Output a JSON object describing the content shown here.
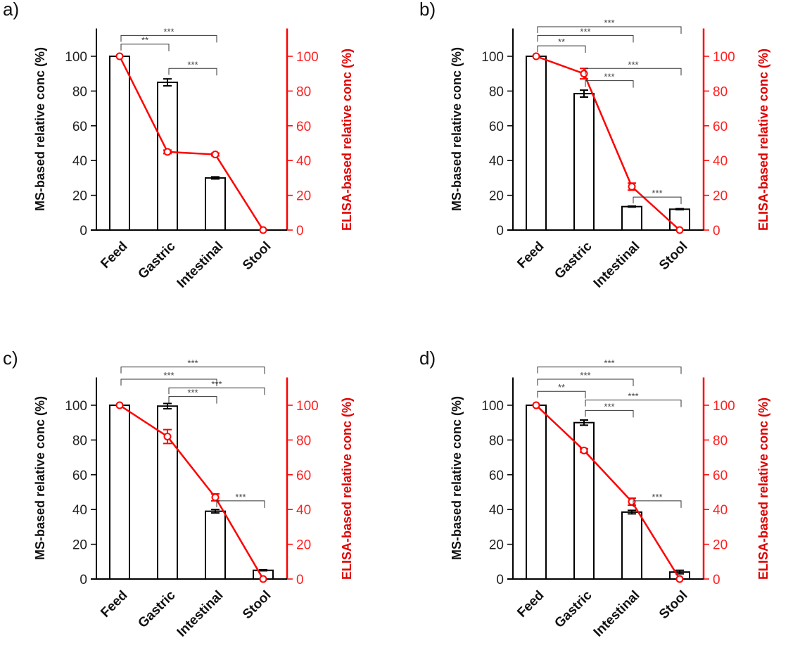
{
  "colors": {
    "ms": "#000000",
    "elisa": "#ff0000"
  },
  "chart_data": [
    {
      "panel": "a)",
      "type": "bar+line",
      "categories": [
        "Feed",
        "Gastric",
        "Intestinal",
        "Stool"
      ],
      "ylabel": "MS-based relative conc (%)",
      "ylabel_right": "ELISA-based relative conc (%)",
      "ylim": [
        0,
        116
      ],
      "yticks": [
        0,
        20,
        40,
        60,
        80,
        100
      ],
      "ms": {
        "values": [
          100,
          85,
          30,
          null
        ],
        "errors": [
          0,
          2,
          0.6,
          0
        ]
      },
      "elisa": {
        "values": [
          100,
          45,
          43.5,
          0
        ],
        "errors": [
          0,
          1,
          0.8,
          0
        ]
      },
      "significance": [
        {
          "from": 0,
          "to": 2,
          "label": "***",
          "y": 112
        },
        {
          "from": 0,
          "to": 1,
          "label": "**",
          "y": 107
        },
        {
          "from": 1,
          "to": 2,
          "label": "***",
          "y": 93
        }
      ]
    },
    {
      "panel": "b)",
      "type": "bar+line",
      "categories": [
        "Feed",
        "Gastric",
        "Intestinal",
        "Stool"
      ],
      "ylabel": "MS-based relative conc (%)",
      "ylabel_right": "ELISA-based relative conc (%)",
      "ylim": [
        0,
        116
      ],
      "yticks": [
        0,
        20,
        40,
        60,
        80,
        100
      ],
      "ms": {
        "values": [
          100,
          78.5,
          13.5,
          12
        ],
        "errors": [
          0,
          2,
          0.3,
          0.3
        ]
      },
      "elisa": {
        "values": [
          100,
          90,
          25,
          0
        ],
        "errors": [
          0,
          3,
          2,
          0
        ]
      },
      "significance": [
        {
          "from": 0,
          "to": 3,
          "label": "***",
          "y": 117
        },
        {
          "from": 0,
          "to": 2,
          "label": "***",
          "y": 112
        },
        {
          "from": 0,
          "to": 1,
          "label": "**",
          "y": 106
        },
        {
          "from": 1,
          "to": 3,
          "label": "***",
          "y": 93
        },
        {
          "from": 1,
          "to": 2,
          "label": "***",
          "y": 86
        },
        {
          "from": 2,
          "to": 3,
          "label": "***",
          "y": 19
        }
      ]
    },
    {
      "panel": "c)",
      "type": "bar+line",
      "categories": [
        "Feed",
        "Gastric",
        "Intestinal",
        "Stool"
      ],
      "ylabel": "MS-based relative conc (%)",
      "ylabel_right": "ELISA-based relative conc (%)",
      "ylim": [
        0,
        116
      ],
      "yticks": [
        0,
        20,
        40,
        60,
        80,
        100
      ],
      "ms": {
        "values": [
          100,
          99.5,
          39,
          5
        ],
        "errors": [
          0,
          1.5,
          1,
          0.3
        ]
      },
      "elisa": {
        "values": [
          100,
          82,
          47,
          0
        ],
        "errors": [
          0,
          4,
          2,
          0
        ]
      },
      "significance": [
        {
          "from": 0,
          "to": 3,
          "label": "***",
          "y": 122
        },
        {
          "from": 0,
          "to": 2,
          "label": "***",
          "y": 115
        },
        {
          "from": 1,
          "to": 3,
          "label": "***",
          "y": 110
        },
        {
          "from": 1,
          "to": 2,
          "label": "***",
          "y": 105
        },
        {
          "from": 2,
          "to": 3,
          "label": "***",
          "y": 45
        }
      ]
    },
    {
      "panel": "d)",
      "type": "bar+line",
      "categories": [
        "Feed",
        "Gastric",
        "Intestinal",
        "Stool"
      ],
      "ylabel": "MS-based relative conc (%)",
      "ylabel_right": "ELISA-based relative conc (%)",
      "ylim": [
        0,
        116
      ],
      "yticks": [
        0,
        20,
        40,
        60,
        80,
        100
      ],
      "ms": {
        "values": [
          100,
          90,
          38.5,
          4
        ],
        "errors": [
          0,
          1.5,
          1,
          1
        ]
      },
      "elisa": {
        "values": [
          100,
          74,
          44.5,
          0
        ],
        "errors": [
          0,
          1,
          2,
          0
        ]
      },
      "significance": [
        {
          "from": 0,
          "to": 3,
          "label": "***",
          "y": 122
        },
        {
          "from": 0,
          "to": 2,
          "label": "***",
          "y": 115
        },
        {
          "from": 0,
          "to": 1,
          "label": "**",
          "y": 108
        },
        {
          "from": 1,
          "to": 3,
          "label": "***",
          "y": 103
        },
        {
          "from": 1,
          "to": 2,
          "label": "***",
          "y": 97
        },
        {
          "from": 2,
          "to": 3,
          "label": "***",
          "y": 45
        }
      ]
    }
  ]
}
